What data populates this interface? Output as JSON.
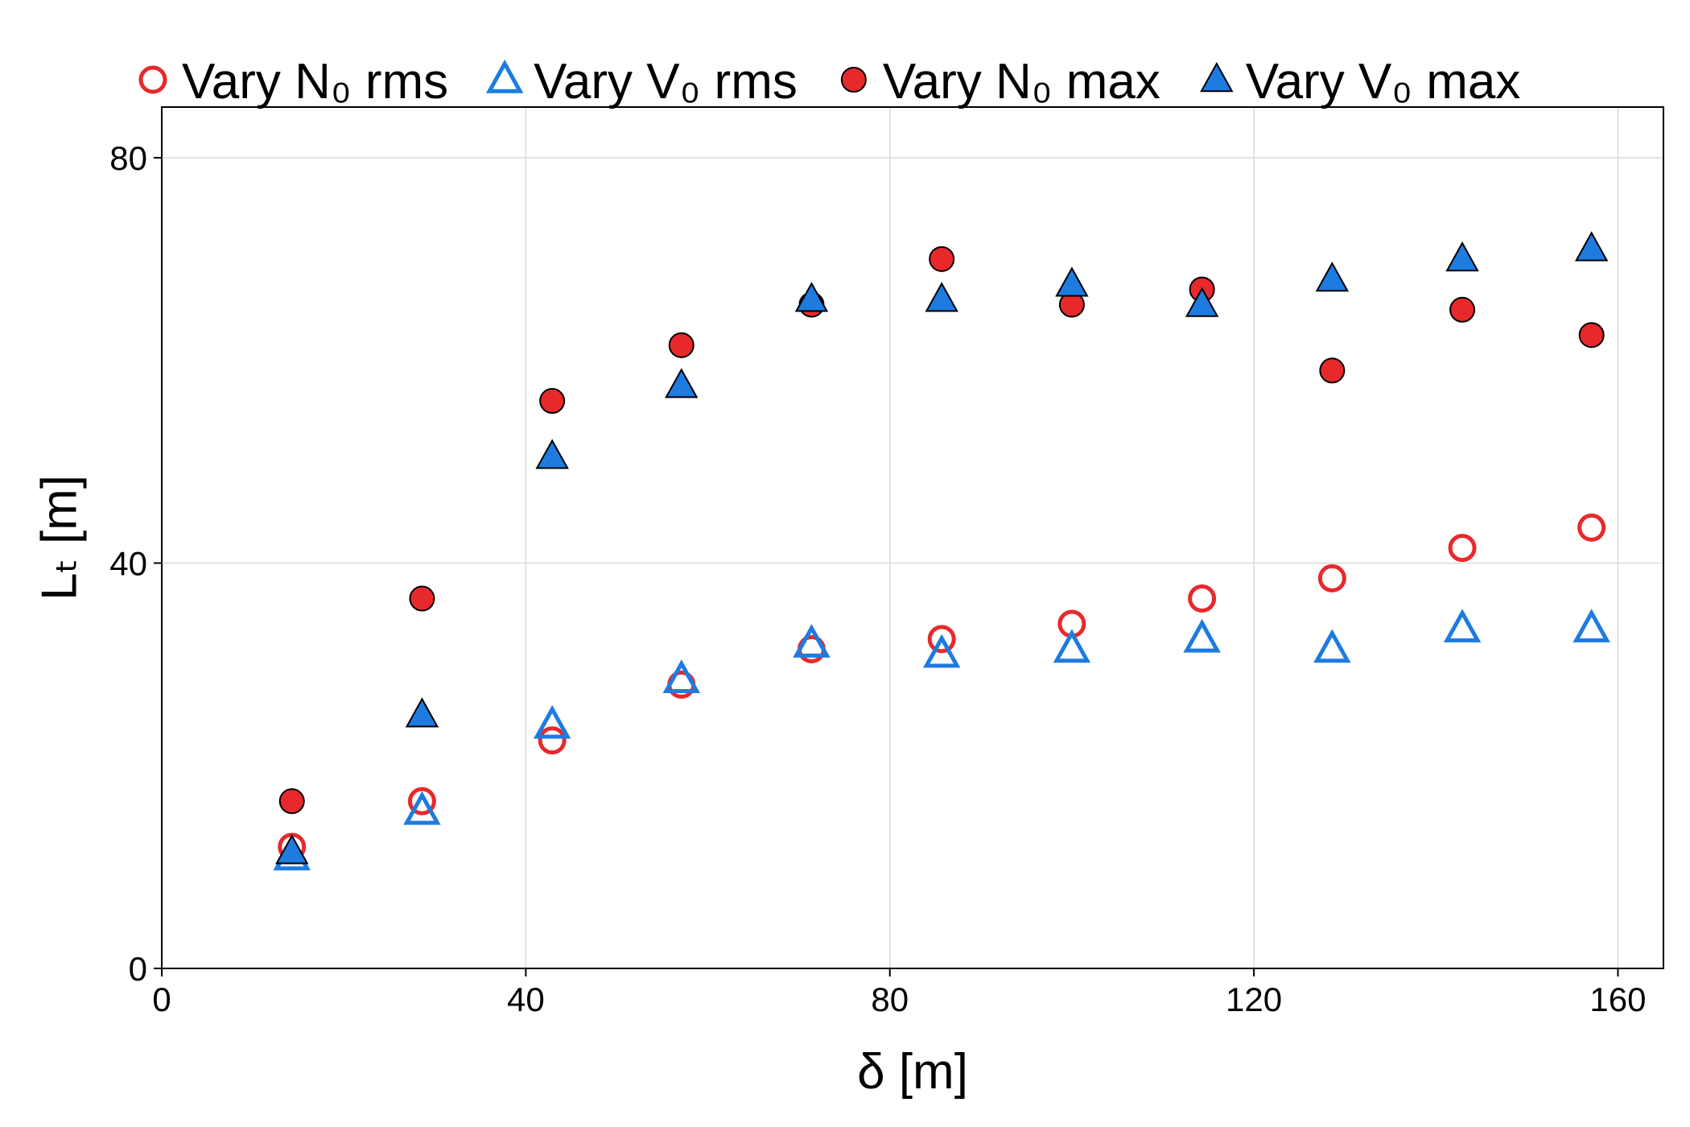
{
  "chart_data": {
    "type": "scatter",
    "xlabel": "δ [m]",
    "ylabel": "Lₜ [m]",
    "xlim": [
      0,
      165
    ],
    "ylim": [
      0,
      85
    ],
    "xticks": [
      0,
      40,
      80,
      120,
      160
    ],
    "yticks": [
      0,
      40,
      80
    ],
    "xtick_labels": [
      "0",
      "40",
      "80",
      "120",
      "160"
    ],
    "ytick_labels": [
      "0",
      "40",
      "80"
    ],
    "grid": true,
    "legend_position": "top",
    "x": [
      14.3,
      28.6,
      42.9,
      57.1,
      71.4,
      85.7,
      100.0,
      114.3,
      128.6,
      142.9,
      157.1
    ],
    "series": [
      {
        "name": "Vary N₀ rms",
        "marker": "circle-open",
        "color": "#e8292c",
        "values": [
          12.0,
          16.5,
          22.5,
          28.0,
          31.5,
          32.5,
          34.0,
          36.5,
          38.5,
          41.5,
          43.5
        ]
      },
      {
        "name": "Vary V₀ rms",
        "marker": "triangle-open",
        "color": "#1e7be0",
        "values": [
          11.0,
          15.5,
          24.0,
          28.5,
          32.0,
          31.0,
          31.5,
          32.5,
          31.5,
          33.5,
          33.5
        ]
      },
      {
        "name": "Vary N₀ max",
        "marker": "circle-filled",
        "color": "#e8292c",
        "values": [
          16.5,
          36.5,
          56.0,
          61.5,
          65.5,
          70.0,
          65.5,
          67.0,
          59.0,
          65.0,
          62.5
        ]
      },
      {
        "name": "Vary V₀ max",
        "marker": "triangle-filled",
        "color": "#1e7be0",
        "values": [
          11.5,
          25.0,
          50.5,
          57.5,
          66.0,
          66.0,
          67.5,
          65.5,
          68.0,
          70.0,
          71.0
        ]
      }
    ]
  }
}
